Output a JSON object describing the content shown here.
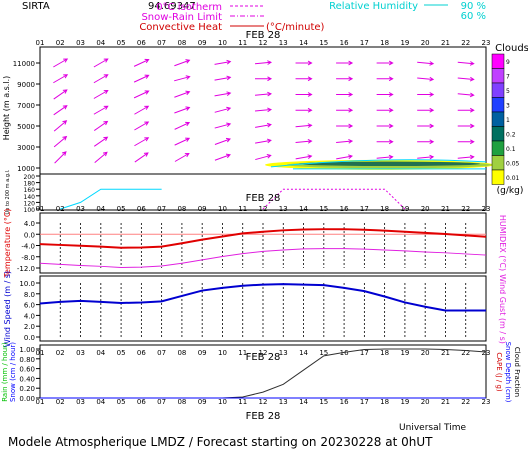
{
  "header": {
    "station": "SIRTA",
    "coords": "94.69347",
    "legend_left": [
      {
        "label": "0°C isotherm",
        "color": "#e000e0",
        "style": "dash"
      },
      {
        "label": "Snow-Rain Limit",
        "color": "#e000e0",
        "style": "dashdot"
      },
      {
        "label": "Convective Heat",
        "color": "#d00000",
        "style": "solid",
        "unit": "(°C/minute)"
      }
    ],
    "legend_right": {
      "label": "Relative Humidity",
      "color": "#00d0d0",
      "values": [
        "90 %",
        "60 %"
      ]
    }
  },
  "hours": [
    "01",
    "02",
    "03",
    "04",
    "05",
    "06",
    "07",
    "08",
    "09",
    "10",
    "11",
    "12",
    "13",
    "14",
    "15",
    "16",
    "17",
    "18",
    "19",
    "20",
    "21",
    "22",
    "23"
  ],
  "date_label": "FEB 28",
  "footer": {
    "time_axis_label": "Universal Time",
    "caption": "Modele Atmospherique LMDZ / Forecast starting on 20230228 at 0hUT"
  },
  "clouds_scale": {
    "title": "Clouds",
    "unit": "(g/kg)",
    "levels": [
      "9",
      "7",
      "5",
      "3",
      "1",
      "0.2",
      "0.1",
      "0.05",
      "0.01"
    ],
    "colors": [
      "#ff00ff",
      "#c040ff",
      "#8040ff",
      "#2040ff",
      "#0060a0",
      "#007060",
      "#20a040",
      "#a0d040",
      "#ffff00"
    ]
  },
  "chart_data": [
    {
      "type": "wind-vectors",
      "panel": "height",
      "ylabel": "Height (m a.s.l.)",
      "ylabel_low": "Up to 200 m a.g.l.",
      "yticks_upper": [
        "1000",
        "3000",
        "5000",
        "7000",
        "9000",
        "11000"
      ],
      "yticks_lower": [
        "100",
        "120",
        "140",
        "160",
        "180",
        "200"
      ],
      "levels_m": [
        11000,
        9500,
        8000,
        6500,
        5000,
        3500,
        2000
      ],
      "wind_dir_deg": [
        [
          240,
          240,
          240,
          240,
          240,
          245,
          250,
          250,
          255,
          260,
          265,
          265,
          270,
          270,
          270,
          270,
          270,
          270,
          270,
          275,
          275,
          275,
          275
        ],
        [
          240,
          240,
          240,
          240,
          245,
          245,
          250,
          255,
          255,
          260,
          265,
          270,
          270,
          270,
          270,
          270,
          270,
          270,
          275,
          275,
          275,
          275,
          275
        ],
        [
          235,
          235,
          240,
          240,
          240,
          245,
          245,
          250,
          255,
          260,
          265,
          265,
          270,
          270,
          270,
          270,
          270,
          270,
          270,
          270,
          275,
          275,
          275
        ],
        [
          230,
          235,
          235,
          240,
          240,
          240,
          245,
          250,
          250,
          255,
          260,
          265,
          265,
          270,
          270,
          270,
          270,
          270,
          270,
          270,
          270,
          270,
          270
        ],
        [
          230,
          230,
          235,
          235,
          240,
          240,
          245,
          245,
          250,
          255,
          260,
          260,
          265,
          265,
          270,
          270,
          270,
          270,
          270,
          270,
          270,
          270,
          270
        ],
        [
          225,
          230,
          230,
          235,
          235,
          240,
          240,
          245,
          250,
          250,
          255,
          260,
          260,
          265,
          265,
          265,
          270,
          270,
          270,
          270,
          270,
          270,
          270
        ],
        [
          225,
          225,
          230,
          230,
          235,
          235,
          240,
          240,
          245,
          250,
          250,
          255,
          255,
          260,
          260,
          260,
          265,
          265,
          265,
          265,
          265,
          265,
          265
        ]
      ],
      "cloud_layer": {
        "hours": [
          12,
          23
        ],
        "height_m": 1300,
        "max_gkg": 0.1
      },
      "rh_90_low": {
        "hours": [
          2,
          3,
          4,
          5,
          6,
          7
        ],
        "values_m": [
          100,
          120,
          160,
          160,
          160,
          160
        ]
      }
    },
    {
      "type": "line",
      "panel": "temperature",
      "ylabel": "Temperature (°C)",
      "ylabel_right": "HUMIDEX (°C)",
      "yticks": [
        "-12.0",
        "-8.0",
        "-4.0",
        "0.0",
        "4.0"
      ],
      "ylim": [
        -12,
        4
      ],
      "x": [
        1,
        2,
        3,
        4,
        5,
        6,
        7,
        8,
        9,
        10,
        11,
        12,
        13,
        14,
        15,
        16,
        17,
        18,
        19,
        20,
        21,
        22,
        23
      ],
      "series": [
        {
          "values": [
            -3.5,
            -3.8,
            -4.1,
            -4.4,
            -4.8,
            -4.7,
            -4.4,
            -3.2,
            -1.9,
            -0.8,
            0.3,
            0.9,
            1.4,
            1.7,
            1.8,
            1.8,
            1.6,
            1.3,
            0.9,
            0.5,
            0.1,
            -0.4,
            -0.9
          ],
          "color": "#e00000"
        },
        {
          "values": [
            -10.3,
            -10.7,
            -11.1,
            -11.4,
            -11.8,
            -11.7,
            -11.3,
            -10.3,
            -9.1,
            -7.9,
            -6.9,
            -6.1,
            -5.6,
            -5.2,
            -5.1,
            -5.1,
            -5.3,
            -5.6,
            -5.9,
            -6.3,
            -6.6,
            -7.0,
            -7.4
          ],
          "color": "#e020e0"
        }
      ]
    },
    {
      "type": "line",
      "panel": "wind",
      "ylabel": "Wind Speed (m / s)",
      "ylabel_right": "Wind Gust (m / s)",
      "yticks": [
        "0.0",
        "2.0",
        "4.0",
        "6.0",
        "8.0",
        "10.0"
      ],
      "ylim": [
        0,
        10
      ],
      "x": [
        1,
        2,
        3,
        4,
        5,
        6,
        7,
        8,
        9,
        10,
        11,
        12,
        13,
        14,
        15,
        16,
        17,
        18,
        19,
        20,
        21,
        22,
        23
      ],
      "series": [
        {
          "values": [
            6.2,
            6.5,
            6.7,
            6.5,
            6.3,
            6.4,
            6.6,
            7.6,
            8.6,
            9.1,
            9.5,
            9.7,
            9.8,
            9.7,
            9.6,
            9.1,
            8.5,
            7.5,
            6.4,
            5.6,
            4.9,
            4.9,
            4.9
          ],
          "color": "#0000d0"
        }
      ]
    },
    {
      "type": "line",
      "panel": "precipitation",
      "ylabel": "Rain (mm / hour)",
      "ylabel_snow": "Snow (cm / hour)",
      "ylabel_right": [
        "CAPE (J / g)",
        "Snow Depth (cm)",
        "Cloud Fraction"
      ],
      "yticks": [
        "0.00",
        "0.20",
        "0.40",
        "0.60",
        "0.80",
        "1.00"
      ],
      "ylim": [
        0,
        1
      ],
      "x": [
        1,
        2,
        3,
        4,
        5,
        6,
        7,
        8,
        9,
        10,
        11,
        12,
        13,
        14,
        15,
        16,
        17,
        18,
        19,
        20,
        21,
        22,
        23
      ],
      "series": [
        {
          "values": [
            0,
            0,
            0,
            0,
            0,
            0,
            0,
            0,
            0,
            0,
            0.02,
            0.12,
            0.28,
            0.57,
            0.86,
            0.93,
            0.99,
            1.0,
            1.0,
            1.0,
            0.99,
            0.97,
            0.94
          ],
          "color": "#303030"
        },
        {
          "values": [
            0,
            0,
            0,
            0,
            0,
            0,
            0,
            0,
            0,
            0,
            0,
            0,
            0,
            0,
            0,
            0,
            0,
            0,
            0,
            0,
            0,
            0,
            0
          ],
          "color": "#00c000"
        },
        {
          "values": [
            0,
            0,
            0,
            0,
            0,
            0,
            0,
            0,
            0,
            0,
            0,
            0,
            0,
            0,
            0,
            0,
            0,
            0,
            0,
            0,
            0,
            0,
            0
          ],
          "color": "#0000ff"
        }
      ]
    }
  ]
}
